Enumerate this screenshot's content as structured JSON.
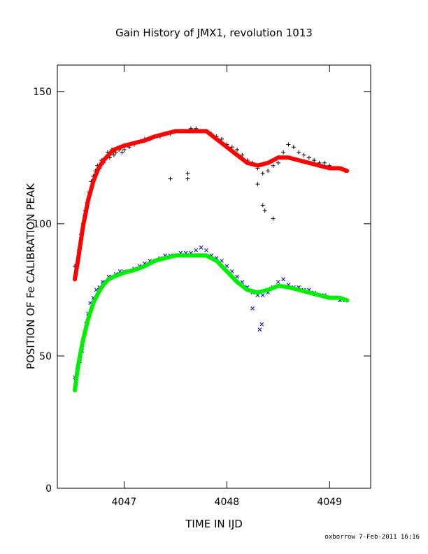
{
  "chart_data": {
    "type": "scatter",
    "title": "Gain History of JMX1, revolution 1013",
    "xlabel": "TIME IN IJD",
    "ylabel": "POSITION OF Fe CALIBRATION PEAK",
    "xlim": [
      4046.35,
      4049.4
    ],
    "ylim": [
      0,
      160
    ],
    "xticks": [
      4047,
      4048,
      4049
    ],
    "yticks": [
      0,
      50,
      100,
      150
    ],
    "grid": false,
    "legend": "none",
    "footer": "oxborrow  7-Feb-2011 16:16",
    "series": [
      {
        "marker": "plus",
        "color": "#000000",
        "x": [
          4046.52,
          4046.56,
          4046.58,
          4046.6,
          4046.62,
          4046.64,
          4046.66,
          4046.68,
          4046.7,
          4046.72,
          4046.74,
          4046.76,
          4046.78,
          4046.8,
          4046.82,
          4046.84,
          4046.86,
          4046.88,
          4046.9,
          4046.92,
          4046.95,
          4046.98,
          4047.0,
          4047.05,
          4047.1,
          4047.15,
          4047.2,
          4047.25,
          4047.3,
          4047.35,
          4047.4,
          4047.45,
          4047.5,
          4047.55,
          4047.6,
          4047.65,
          4047.7,
          4047.75,
          4047.8,
          4047.85,
          4047.9,
          4047.95,
          4048.0,
          4048.05,
          4048.1,
          4048.15,
          4048.2,
          4048.25,
          4048.3,
          4048.35,
          4048.4,
          4048.45,
          4048.5,
          4048.55,
          4048.6,
          4048.65,
          4048.7,
          4048.75,
          4048.8,
          4048.85,
          4048.9,
          4048.95,
          4049.0,
          4049.05,
          4049.1,
          4049.15,
          4047.45,
          4047.62,
          4047.62,
          4048.35,
          4048.37,
          4048.45,
          4048.3
        ],
        "y": [
          84,
          90,
          96,
          100,
          105,
          108,
          112,
          116,
          118,
          120,
          122,
          121,
          124,
          123,
          125,
          127,
          125,
          128,
          126,
          127,
          128,
          127,
          128,
          129,
          130,
          131,
          132,
          132,
          133,
          133,
          134,
          134,
          135,
          135,
          135,
          136,
          136,
          135,
          135,
          134,
          133,
          132,
          130,
          129,
          128,
          126,
          124,
          123,
          121,
          119,
          120,
          122,
          123,
          127,
          130,
          129,
          127,
          126,
          125,
          124,
          123,
          123,
          122,
          121,
          121,
          120,
          117,
          117,
          119,
          107,
          105,
          102,
          115
        ]
      },
      {
        "marker": "x",
        "color": "#0000cc",
        "x": [
          4046.52,
          4046.55,
          4046.57,
          4046.59,
          4046.61,
          4046.63,
          4046.65,
          4046.67,
          4046.7,
          4046.73,
          4046.76,
          4046.79,
          4046.82,
          4046.85,
          4046.88,
          4046.92,
          4046.96,
          4047.0,
          4047.05,
          4047.1,
          4047.15,
          4047.2,
          4047.25,
          4047.3,
          4047.35,
          4047.4,
          4047.45,
          4047.5,
          4047.55,
          4047.6,
          4047.65,
          4047.7,
          4047.75,
          4047.8,
          4047.85,
          4047.9,
          4047.95,
          4048.0,
          4048.05,
          4048.1,
          4048.15,
          4048.2,
          4048.25,
          4048.3,
          4048.35,
          4048.4,
          4048.45,
          4048.5,
          4048.55,
          4048.6,
          4048.65,
          4048.7,
          4048.75,
          4048.8,
          4048.85,
          4048.9,
          4048.95,
          4049.0,
          4049.05,
          4049.1,
          4049.15,
          4048.32,
          4048.34,
          4048.25
        ],
        "y": [
          42,
          46,
          48,
          52,
          58,
          62,
          66,
          70,
          72,
          75,
          76,
          78,
          78,
          80,
          80,
          81,
          82,
          82,
          82,
          83,
          84,
          85,
          86,
          86,
          87,
          88,
          88,
          88,
          89,
          89,
          89,
          90,
          91,
          90,
          88,
          87,
          86,
          84,
          82,
          80,
          78,
          76,
          74,
          73,
          73,
          74,
          76,
          78,
          79,
          77,
          76,
          76,
          75,
          75,
          74,
          73,
          73,
          72,
          72,
          71,
          71,
          60,
          62,
          68
        ]
      }
    ],
    "fits": [
      {
        "color": "#ff0000",
        "x": [
          4046.52,
          4046.55,
          4046.6,
          4046.65,
          4046.7,
          4046.75,
          4046.8,
          4046.85,
          4046.9,
          4047.0,
          4047.1,
          4047.2,
          4047.3,
          4047.4,
          4047.5,
          4047.6,
          4047.7,
          4047.8,
          4047.9,
          4048.0,
          4048.1,
          4048.2,
          4048.3,
          4048.4,
          4048.5,
          4048.6,
          4048.7,
          4048.8,
          4048.9,
          4049.0,
          4049.1,
          4049.17
        ],
        "y": [
          79,
          86,
          99,
          109,
          116,
          121,
          124,
          126,
          128,
          129.5,
          130.5,
          131.5,
          133,
          134,
          135,
          135,
          135,
          135,
          132,
          129,
          126,
          123,
          122,
          123,
          125,
          125,
          124,
          123,
          122,
          121,
          121,
          120
        ]
      },
      {
        "color": "#00ee00",
        "x": [
          4046.52,
          4046.55,
          4046.6,
          4046.65,
          4046.7,
          4046.75,
          4046.8,
          4046.85,
          4046.9,
          4047.0,
          4047.1,
          4047.2,
          4047.3,
          4047.4,
          4047.5,
          4047.6,
          4047.7,
          4047.8,
          4047.9,
          4048.0,
          4048.1,
          4048.2,
          4048.3,
          4048.4,
          4048.5,
          4048.6,
          4048.7,
          4048.8,
          4048.9,
          4049.0,
          4049.1,
          4049.17
        ],
        "y": [
          37,
          46,
          56,
          64,
          70,
          74,
          77,
          79,
          80,
          81.5,
          82.5,
          84,
          86,
          87,
          88,
          88,
          88,
          88,
          86,
          82,
          78,
          75,
          74,
          75,
          76.5,
          76,
          75,
          74,
          73,
          72,
          72,
          71
        ]
      }
    ]
  }
}
